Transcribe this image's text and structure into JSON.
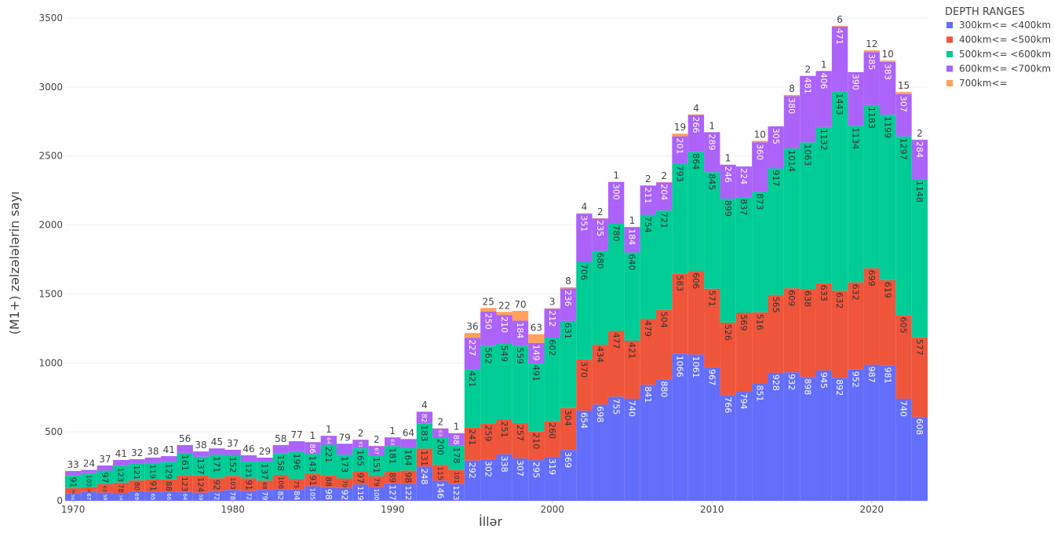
{
  "chart_data": {
    "type": "stacked-bar",
    "x_label": "İllər",
    "y_label": "(M1+) zəlzələlərin sayı",
    "legend_title": "DEPTH RANGES",
    "legend_position": "right",
    "grid": true,
    "x": [
      1970,
      1971,
      1972,
      1973,
      1974,
      1975,
      1976,
      1977,
      1978,
      1979,
      1980,
      1981,
      1982,
      1983,
      1984,
      1985,
      1986,
      1987,
      1988,
      1989,
      1990,
      1991,
      1992,
      1993,
      1994,
      1995,
      1996,
      1997,
      1998,
      1999,
      2000,
      2001,
      2002,
      2003,
      2004,
      2005,
      2006,
      2007,
      2008,
      2009,
      2010,
      2011,
      2012,
      2013,
      2014,
      2015,
      2016,
      2017,
      2018,
      2019,
      2020,
      2021,
      2022,
      2023
    ],
    "xlim": [
      1969.5,
      2023.5
    ],
    "xticks": [
      1970,
      1980,
      1990,
      2000,
      2010,
      2020
    ],
    "ylim": [
      0,
      3500
    ],
    "yticks": [
      0,
      500,
      1000,
      1500,
      2000,
      2500,
      3000,
      3500
    ],
    "series": [
      {
        "name": "300km<= <400km",
        "color": "#636efa",
        "values": [
          56,
          67,
          59,
          54,
          69,
          65,
          66,
          64,
          59,
          72,
          78,
          72,
          79,
          82,
          84,
          105,
          98,
          92,
          119,
          100,
          127,
          122,
          248,
          146,
          123,
          292,
          302,
          338,
          307,
          295,
          319,
          369,
          654,
          698,
          755,
          740,
          841,
          880,
          1066,
          1061,
          967,
          766,
          794,
          851,
          928,
          932,
          898,
          945,
          892,
          952,
          987,
          981,
          740,
          608
        ]
      },
      {
        "name": "400km<= <500km",
        "color": "#ef553b",
        "values": [
          36,
          30,
          63,
          78,
          80,
          91,
          88,
          123,
          124,
          92,
          103,
          91,
          68,
          106,
          75,
          91,
          88,
          70,
          97,
          79,
          89,
          98,
          131,
          115,
          101,
          241,
          259,
          251,
          257,
          210,
          260,
          304,
          370,
          434,
          477,
          421,
          479,
          504,
          583,
          606,
          571,
          526,
          569,
          516,
          565,
          609,
          638,
          633,
          632,
          632,
          699,
          619,
          605,
          577
        ]
      },
      {
        "name": "500km<= <600km",
        "color": "#00cc96",
        "values": [
          91,
          103,
          97,
          123,
          121,
          119,
          129,
          161,
          137,
          171,
          152,
          121,
          137,
          158,
          196,
          143,
          221,
          173,
          165,
          151,
          181,
          164,
          183,
          200,
          178,
          421,
          562,
          549,
          559,
          491,
          602,
          631,
          706,
          680,
          780,
          640,
          754,
          721,
          793,
          864,
          845,
          899,
          837,
          873,
          917,
          1014,
          1063,
          1132,
          1443,
          1134,
          1183,
          1199,
          1297,
          1148
        ]
      },
      {
        "name": "600km<= <700km",
        "color": "#ab63fa",
        "values": [
          33,
          24,
          37,
          41,
          32,
          38,
          41,
          56,
          38,
          45,
          37,
          46,
          29,
          58,
          77,
          86,
          64,
          79,
          61,
          67,
          63,
          64,
          82,
          63,
          88,
          227,
          250,
          210,
          184,
          149,
          212,
          236,
          351,
          235,
          300,
          184,
          211,
          204,
          201,
          266,
          289,
          246,
          224,
          360,
          305,
          380,
          481,
          406,
          471,
          390,
          385,
          383,
          307,
          284
        ]
      },
      {
        "name": "700km<=",
        "color": "#ffa15a",
        "values": [
          null,
          null,
          null,
          null,
          null,
          null,
          null,
          null,
          null,
          null,
          null,
          null,
          null,
          null,
          null,
          1,
          1,
          null,
          2,
          2,
          1,
          null,
          4,
          2,
          1,
          36,
          25,
          22,
          70,
          63,
          3,
          8,
          4,
          2,
          1,
          1,
          2,
          2,
          19,
          4,
          1,
          1,
          null,
          10,
          null,
          8,
          2,
          1,
          6,
          null,
          12,
          10,
          15,
          2
        ]
      }
    ]
  }
}
